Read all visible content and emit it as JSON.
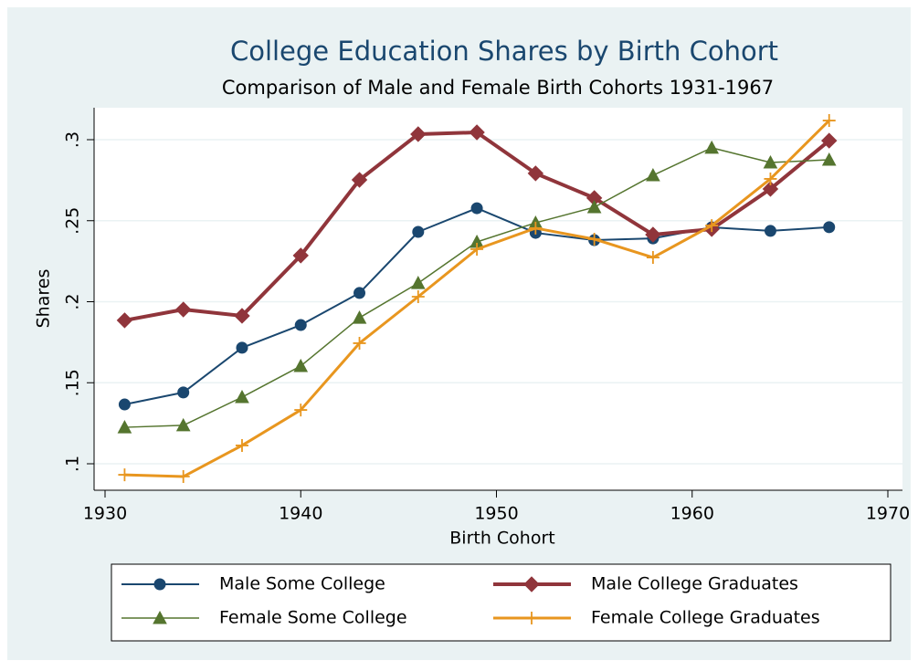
{
  "chart_data": {
    "type": "line",
    "title": "College Education Shares by Birth Cohort",
    "subtitle": "Comparison of Male and Female Birth Cohorts 1931-1967",
    "x_label": "Birth Cohort",
    "y_label": "Shares",
    "x": [
      1931,
      1934,
      1937,
      1940,
      1943,
      1946,
      1949,
      1952,
      1955,
      1958,
      1961,
      1964,
      1967
    ],
    "xlim": [
      1930,
      1970
    ],
    "xticks": [
      1930,
      1940,
      1950,
      1960,
      1970
    ],
    "ylim": [
      0.1,
      0.3
    ],
    "yticks": [
      {
        "value": 0.1,
        "label": ".1"
      },
      {
        "value": 0.15,
        "label": ".15"
      },
      {
        "value": 0.2,
        "label": ".2"
      },
      {
        "value": 0.25,
        "label": ".25"
      },
      {
        "value": 0.3,
        "label": ".3"
      }
    ],
    "grid": true,
    "series": [
      {
        "name": "Male Some College",
        "color": "#1a476f",
        "marker": "circle",
        "width": 2,
        "values": [
          0.1366,
          0.144,
          0.1716,
          0.1856,
          0.2054,
          0.2431,
          0.2577,
          0.2425,
          0.238,
          0.2391,
          0.2459,
          0.2437,
          0.246
        ]
      },
      {
        "name": "Male College Graduates",
        "color": "#90353b",
        "marker": "diamond",
        "width": 4,
        "values": [
          0.1885,
          0.1952,
          0.1913,
          0.2285,
          0.2752,
          0.3034,
          0.3045,
          0.2792,
          0.264,
          0.2414,
          0.2448,
          0.2696,
          0.2994
        ]
      },
      {
        "name": "Female Some College",
        "color": "#55752f",
        "marker": "triangle",
        "width": 1.5,
        "values": [
          0.1225,
          0.1237,
          0.1411,
          0.1603,
          0.1901,
          0.2115,
          0.2369,
          0.2487,
          0.2583,
          0.278,
          0.295,
          0.2859,
          0.2876
        ]
      },
      {
        "name": "Female College Graduates",
        "color": "#e8961f",
        "marker": "plus",
        "width": 3,
        "values": [
          0.0932,
          0.0921,
          0.1113,
          0.1332,
          0.1744,
          0.2031,
          0.2324,
          0.2454,
          0.2386,
          0.2273,
          0.247,
          0.2758,
          0.3118
        ]
      }
    ]
  }
}
